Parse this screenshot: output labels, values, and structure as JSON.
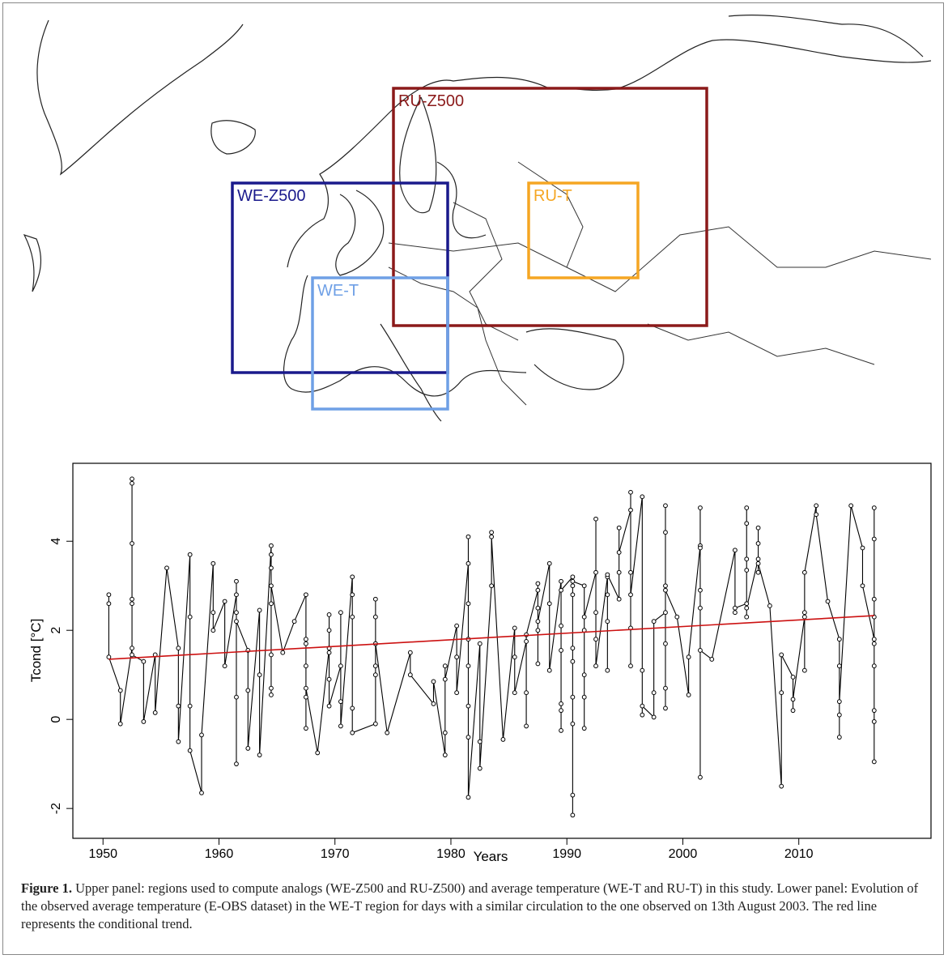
{
  "map": {
    "regions": [
      {
        "label": "RU-Z500",
        "color": "#8b1a1a"
      },
      {
        "label": "WE-Z500",
        "color": "#1a1a8c"
      },
      {
        "label": "RU-T",
        "color": "#f5a623"
      },
      {
        "label": "WE-T",
        "color": "#6fa0e6"
      }
    ]
  },
  "chart_data": {
    "type": "line",
    "xlabel": "Years",
    "ylabel": "Tcond [°C]",
    "xlim": [
      1947.4,
      2021.4
    ],
    "ylim": [
      -2.67,
      5.75
    ],
    "xticks": [
      1950,
      1960,
      1970,
      1980,
      1990,
      2000,
      2010
    ],
    "yticks": [
      -2,
      0,
      2,
      4
    ],
    "x": [
      1950.5,
      1950.5,
      1950.5,
      1951.5,
      1951.5,
      1952.5,
      1952.5,
      1952.5,
      1952.5,
      1952.5,
      1952.5,
      1952.5,
      1953.5,
      1953.5,
      1954.5,
      1954.5,
      1955.5,
      1956.5,
      1956.5,
      1956.5,
      1957.5,
      1957.5,
      1957.5,
      1957.5,
      1958.5,
      1958.5,
      1959.5,
      1959.5,
      1959.5,
      1960.5,
      1960.5,
      1961.5,
      1961.5,
      1961.5,
      1961.5,
      1961.5,
      1961.5,
      1962.5,
      1962.5,
      1962.5,
      1963.5,
      1963.5,
      1963.5,
      1964.5,
      1964.5,
      1964.5,
      1964.5,
      1964.5,
      1964.5,
      1964.5,
      1964.5,
      1965.5,
      1966.5,
      1967.5,
      1967.5,
      1967.5,
      1967.5,
      1967.5,
      1967.5,
      1967.5,
      1968.5,
      1969.5,
      1969.5,
      1969.5,
      1969.5,
      1969.5,
      1969.5,
      1970.5,
      1970.5,
      1970.5,
      1970.5,
      1971.5,
      1971.5,
      1971.5,
      1971.5,
      1971.5,
      1973.5,
      1973.5,
      1973.5,
      1973.5,
      1973.5,
      1973.5,
      1973.5,
      1974.5,
      1976.5,
      1976.5,
      1978.5,
      1978.5,
      1979.5,
      1979.5,
      1979.5,
      1979.5,
      1980.5,
      1980.5,
      1980.5,
      1981.5,
      1981.5,
      1981.5,
      1981.5,
      1981.5,
      1981.5,
      1981.5,
      1981.5,
      1982.5,
      1982.5,
      1982.5,
      1983.5,
      1983.5,
      1983.5,
      1984.5,
      1985.5,
      1985.5,
      1985.5,
      1986.5,
      1986.5,
      1986.5,
      1986.5,
      1987.5,
      1987.5,
      1987.5,
      1987.5,
      1987.5,
      1987.5,
      1988.5,
      1988.5,
      1988.5,
      1989.5,
      1989.5,
      1989.5,
      1989.5,
      1989.5,
      1989.5,
      1989.5,
      1990.5,
      1990.5,
      1990.5,
      1990.5,
      1990.5,
      1990.5,
      1990.5,
      1990.5,
      1990.5,
      1990.5,
      1991.5,
      1991.5,
      1991.5,
      1991.5,
      1991.5,
      1991.5,
      1992.5,
      1992.5,
      1992.5,
      1992.5,
      1992.5,
      1993.5,
      1993.5,
      1993.5,
      1993.5,
      1993.5,
      1994.5,
      1994.5,
      1994.5,
      1994.5,
      1995.5,
      1995.5,
      1995.5,
      1995.5,
      1995.5,
      1995.5,
      1996.5,
      1996.5,
      1996.5,
      1996.5,
      1997.5,
      1997.5,
      1997.5,
      1998.5,
      1998.5,
      1998.5,
      1998.5,
      1998.5,
      1998.5,
      1998.5,
      1998.5,
      1999.5,
      2000.5,
      2000.5,
      2001.5,
      2001.5,
      2001.5,
      2001.5,
      2001.5,
      2001.5,
      2001.5,
      2002.5,
      2004.5,
      2004.5,
      2004.5,
      2005.5,
      2005.5,
      2005.5,
      2005.5,
      2005.5,
      2005.5,
      2005.5,
      2006.5,
      2006.5,
      2006.5,
      2006.5,
      2006.5,
      2007.5,
      2008.5,
      2008.5,
      2008.5,
      2009.5,
      2009.5,
      2009.5,
      2010.5,
      2010.5,
      2010.5,
      2010.5,
      2011.5,
      2011.5,
      2012.5,
      2013.5,
      2013.5,
      2013.5,
      2013.5,
      2013.5,
      2014.5,
      2015.5,
      2015.5,
      2016.5,
      2016.5,
      2016.5,
      2016.5,
      2016.5,
      2016.5,
      2016.5,
      2016.5,
      2016.5,
      2016.5
    ],
    "series": [
      {
        "color": "#000000",
        "values": [
          2.8,
          2.6,
          1.4,
          0.65,
          -0.1,
          1.6,
          2.7,
          5.4,
          5.3,
          3.95,
          2.6,
          1.45,
          1.3,
          -0.05,
          1.45,
          0.15,
          3.4,
          1.6,
          0.3,
          -0.5,
          3.7,
          2.3,
          0.3,
          -0.7,
          -1.65,
          -0.35,
          3.5,
          2.4,
          2.0,
          2.65,
          1.2,
          2.8,
          2.4,
          3.1,
          0.5,
          -1.0,
          2.2,
          1.55,
          0.65,
          -0.65,
          2.45,
          1.0,
          -0.8,
          3.9,
          3.4,
          2.6,
          1.45,
          0.7,
          0.55,
          3.7,
          3.0,
          1.5,
          2.2,
          2.8,
          1.8,
          1.2,
          0.5,
          -0.2,
          1.7,
          0.7,
          -0.75,
          1.6,
          2.0,
          2.35,
          1.5,
          0.9,
          0.3,
          1.2,
          2.4,
          0.4,
          -0.15,
          3.2,
          2.8,
          2.3,
          0.25,
          -0.3,
          -0.1,
          1.0,
          1.2,
          1.7,
          2.7,
          2.3,
          1.7,
          -0.3,
          1.5,
          1.0,
          0.35,
          0.85,
          -0.8,
          -0.3,
          1.2,
          0.9,
          2.1,
          1.4,
          0.6,
          3.5,
          4.1,
          2.6,
          1.8,
          1.2,
          -0.4,
          0.3,
          -1.75,
          1.7,
          -0.5,
          -1.1,
          3.0,
          4.2,
          4.1,
          -0.45,
          2.05,
          1.4,
          0.6,
          1.75,
          0.6,
          -0.15,
          1.9,
          2.9,
          2.5,
          2.0,
          1.25,
          3.05,
          2.2,
          3.5,
          2.6,
          1.1,
          3.1,
          2.1,
          1.55,
          0.2,
          -0.25,
          0.35,
          2.9,
          3.2,
          3.0,
          2.8,
          1.3,
          -2.15,
          -1.7,
          0.5,
          -0.1,
          1.6,
          3.1,
          3.0,
          2.0,
          1.0,
          0.5,
          -0.2,
          2.3,
          3.3,
          4.5,
          2.4,
          1.8,
          1.2,
          3.2,
          2.8,
          2.2,
          1.1,
          3.25,
          2.7,
          3.3,
          4.3,
          3.75,
          4.7,
          5.1,
          3.3,
          2.05,
          1.2,
          2.8,
          5.0,
          1.1,
          0.1,
          0.3,
          0.05,
          0.6,
          2.2,
          2.4,
          3.0,
          4.8,
          4.2,
          1.7,
          0.7,
          0.25,
          2.9,
          2.3,
          0.55,
          1.4,
          3.9,
          2.9,
          2.5,
          -1.3,
          4.75,
          3.85,
          1.55,
          1.35,
          3.8,
          2.4,
          2.5,
          2.6,
          3.35,
          4.75,
          4.4,
          2.3,
          3.6,
          2.5,
          3.6,
          3.3,
          4.3,
          3.95,
          3.5,
          2.55,
          -1.5,
          0.6,
          1.45,
          0.95,
          0.2,
          0.45,
          2.3,
          2.4,
          1.1,
          3.3,
          4.8,
          4.6,
          2.65,
          1.8,
          1.2,
          0.1,
          -0.4,
          0.4,
          4.8,
          3.85,
          3.0,
          1.8,
          -0.95,
          -0.05,
          0.2,
          4.05,
          4.75,
          2.7,
          1.2,
          1.7,
          2.3
        ]
      }
    ],
    "trend": {
      "color": "#cc1111",
      "x": [
        1950.5,
        2016.5
      ],
      "values": [
        1.35,
        2.33
      ]
    }
  },
  "caption": {
    "label": "Figure 1.",
    "text": "Upper panel: regions used to compute analogs (WE-Z500 and RU-Z500) and average temperature (WE-T and RU-T) in this study. Lower panel: Evolution of the observed average temperature (E-OBS dataset) in the WE-T region for days with a similar circulation to the one observed on 13th August 2003. The red line represents the conditional trend."
  }
}
